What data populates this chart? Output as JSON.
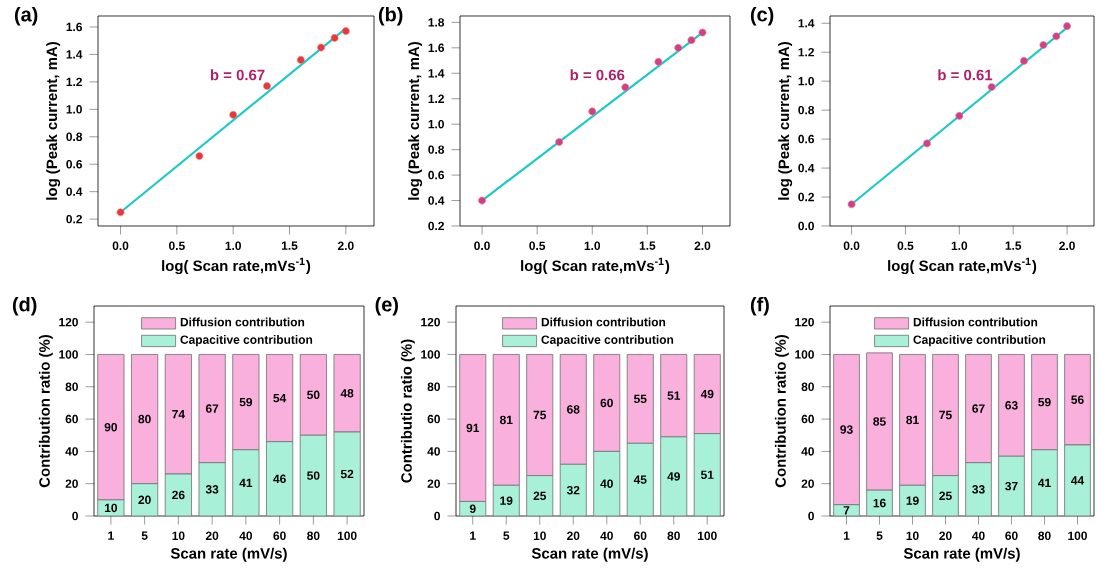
{
  "chart_data": [
    {
      "type": "scatter",
      "title": "(a)",
      "xlabel": "log( Scan rate,mVs$^{-1}$)",
      "ylabel": "log (Peak current, mA)",
      "annotations": [
        "b = 0.67"
      ],
      "xlim": [
        -0.2,
        2.25
      ],
      "ylim": [
        0.15,
        1.68
      ],
      "xticks": [
        {
          "value": 0,
          "label": "0.0"
        },
        {
          "value": 0.5,
          "label": "0.5"
        },
        {
          "value": 1,
          "label": "1.0"
        },
        {
          "value": 1.5,
          "label": "1.5"
        },
        {
          "value": 2,
          "label": "2.0"
        }
      ],
      "yticks": [
        {
          "value": 0.2,
          "label": "0.2"
        },
        {
          "value": 0.4,
          "label": "0.4"
        },
        {
          "value": 0.6,
          "label": "0.6"
        },
        {
          "value": 0.8,
          "label": "0.8"
        },
        {
          "value": 1,
          "label": "1.0"
        },
        {
          "value": 1.2,
          "label": "1.2"
        },
        {
          "value": 1.4,
          "label": "1.4"
        },
        {
          "value": 1.6,
          "label": "1.6"
        }
      ],
      "series": [
        {
          "type": "line",
          "color": "#1ec8c8",
          "x": [
            0,
            2
          ],
          "values": [
            0.25,
            1.59
          ]
        },
        {
          "type": "scatter",
          "color": "#e8383a",
          "x": [
            0,
            0.7,
            1,
            1.3,
            1.6,
            1.78,
            1.9,
            2
          ],
          "values": [
            0.25,
            0.66,
            0.96,
            1.17,
            1.36,
            1.45,
            1.52,
            1.57
          ]
        }
      ]
    },
    {
      "type": "scatter",
      "title": "(b)",
      "xlabel": "log( Scan rate,mVs$^{-1}$)",
      "ylabel": "log (Peak current, mA)",
      "annotations": [
        "b = 0.66"
      ],
      "xlim": [
        -0.2,
        2.25
      ],
      "ylim": [
        0.2,
        1.85
      ],
      "xticks": [
        {
          "value": 0,
          "label": "0.0"
        },
        {
          "value": 0.5,
          "label": "0.5"
        },
        {
          "value": 1,
          "label": "1.0"
        },
        {
          "value": 1.5,
          "label": "1.5"
        },
        {
          "value": 2,
          "label": "2.0"
        }
      ],
      "yticks": [
        {
          "value": 0.2,
          "label": "0.2"
        },
        {
          "value": 0.4,
          "label": "0.4"
        },
        {
          "value": 0.6,
          "label": "0.6"
        },
        {
          "value": 0.8,
          "label": "0.8"
        },
        {
          "value": 1,
          "label": "1.0"
        },
        {
          "value": 1.2,
          "label": "1.2"
        },
        {
          "value": 1.4,
          "label": "1.4"
        },
        {
          "value": 1.6,
          "label": "1.6"
        },
        {
          "value": 1.8,
          "label": "1.8"
        }
      ],
      "series": [
        {
          "type": "line",
          "color": "#1ec8c8",
          "x": [
            0,
            2
          ],
          "values": [
            0.4,
            1.72
          ]
        },
        {
          "type": "scatter",
          "color": "#d0408a",
          "x": [
            0,
            0.7,
            1,
            1.3,
            1.6,
            1.78,
            1.9,
            2
          ],
          "values": [
            0.4,
            0.86,
            1.1,
            1.29,
            1.49,
            1.6,
            1.66,
            1.72
          ]
        }
      ]
    },
    {
      "type": "scatter",
      "title": "(c)",
      "xlabel": "log( Scan rate,mVs$^{-1}$)",
      "ylabel": "log (Peak current, mA)",
      "annotations": [
        "b = 0.61"
      ],
      "xlim": [
        -0.2,
        2.25
      ],
      "ylim": [
        0,
        1.45
      ],
      "xticks": [
        {
          "value": 0,
          "label": "0.0"
        },
        {
          "value": 0.5,
          "label": "0.5"
        },
        {
          "value": 1,
          "label": "1.0"
        },
        {
          "value": 1.5,
          "label": "1.5"
        },
        {
          "value": 2,
          "label": "2.0"
        }
      ],
      "yticks": [
        {
          "value": 0,
          "label": "0.0"
        },
        {
          "value": 0.2,
          "label": "0.2"
        },
        {
          "value": 0.4,
          "label": "0.4"
        },
        {
          "value": 0.6,
          "label": "0.6"
        },
        {
          "value": 0.8,
          "label": "0.8"
        },
        {
          "value": 1,
          "label": "1.0"
        },
        {
          "value": 1.2,
          "label": "1.2"
        },
        {
          "value": 1.4,
          "label": "1.4"
        }
      ],
      "series": [
        {
          "type": "line",
          "color": "#1ec8c8",
          "x": [
            0,
            2
          ],
          "values": [
            0.15,
            1.37
          ]
        },
        {
          "type": "scatter",
          "color": "#d0408a",
          "x": [
            0,
            0.7,
            1,
            1.3,
            1.6,
            1.78,
            1.9,
            2
          ],
          "values": [
            0.15,
            0.57,
            0.76,
            0.96,
            1.14,
            1.25,
            1.31,
            1.38
          ]
        }
      ]
    },
    {
      "type": "bar",
      "stacked": true,
      "title": "(d)",
      "xlabel": "Scan rate (mV/s)",
      "ylabel": "Contribution ratio (%)",
      "legend": "top",
      "data_labels": true,
      "categories": [
        "1",
        "5",
        "10",
        "20",
        "40",
        "60",
        "80",
        "100"
      ],
      "ylim": [
        0,
        130
      ],
      "yticks": [
        0,
        20,
        40,
        60,
        80,
        100,
        120
      ],
      "series": [
        {
          "name": "Capacitive contribution",
          "color": "#a8f0d8",
          "values": [
            10,
            20,
            26,
            33,
            41,
            46,
            50,
            52
          ]
        },
        {
          "name": "Diffusion contribution",
          "color": "#f9b0dc",
          "values": [
            90,
            80,
            74,
            67,
            59,
            54,
            50,
            48
          ]
        }
      ]
    },
    {
      "type": "bar",
      "stacked": true,
      "title": "(e)",
      "xlabel": "Scan rate (mV/s)",
      "ylabel": "Contributio ratio (%)",
      "legend": "top",
      "data_labels": true,
      "categories": [
        "1",
        "5",
        "10",
        "20",
        "40",
        "60",
        "80",
        "100"
      ],
      "ylim": [
        0,
        130
      ],
      "yticks": [
        0,
        20,
        40,
        60,
        80,
        100,
        120
      ],
      "series": [
        {
          "name": "Capacitive contribution",
          "color": "#a8f0d8",
          "values": [
            9,
            19,
            25,
            32,
            40,
            45,
            49,
            51
          ]
        },
        {
          "name": "Diffusion contribution",
          "color": "#f9b0dc",
          "values": [
            91,
            81,
            75,
            68,
            60,
            55,
            51,
            49
          ]
        }
      ]
    },
    {
      "type": "bar",
      "stacked": true,
      "title": "(f)",
      "xlabel": "Scan rate (mV/s)",
      "ylabel": "Contribution ratio (%)",
      "legend": "top",
      "data_labels": true,
      "categories": [
        "1",
        "5",
        "10",
        "20",
        "40",
        "60",
        "80",
        "100"
      ],
      "ylim": [
        0,
        130
      ],
      "yticks": [
        0,
        20,
        40,
        60,
        80,
        100,
        120
      ],
      "series": [
        {
          "name": "Capacitive contribution",
          "color": "#a8f0d8",
          "values": [
            7,
            16,
            19,
            25,
            33,
            37,
            41,
            44
          ]
        },
        {
          "name": "Diffusion contribution",
          "color": "#f9b0dc",
          "values": [
            93,
            85,
            81,
            75,
            67,
            63,
            59,
            56
          ]
        }
      ]
    }
  ]
}
